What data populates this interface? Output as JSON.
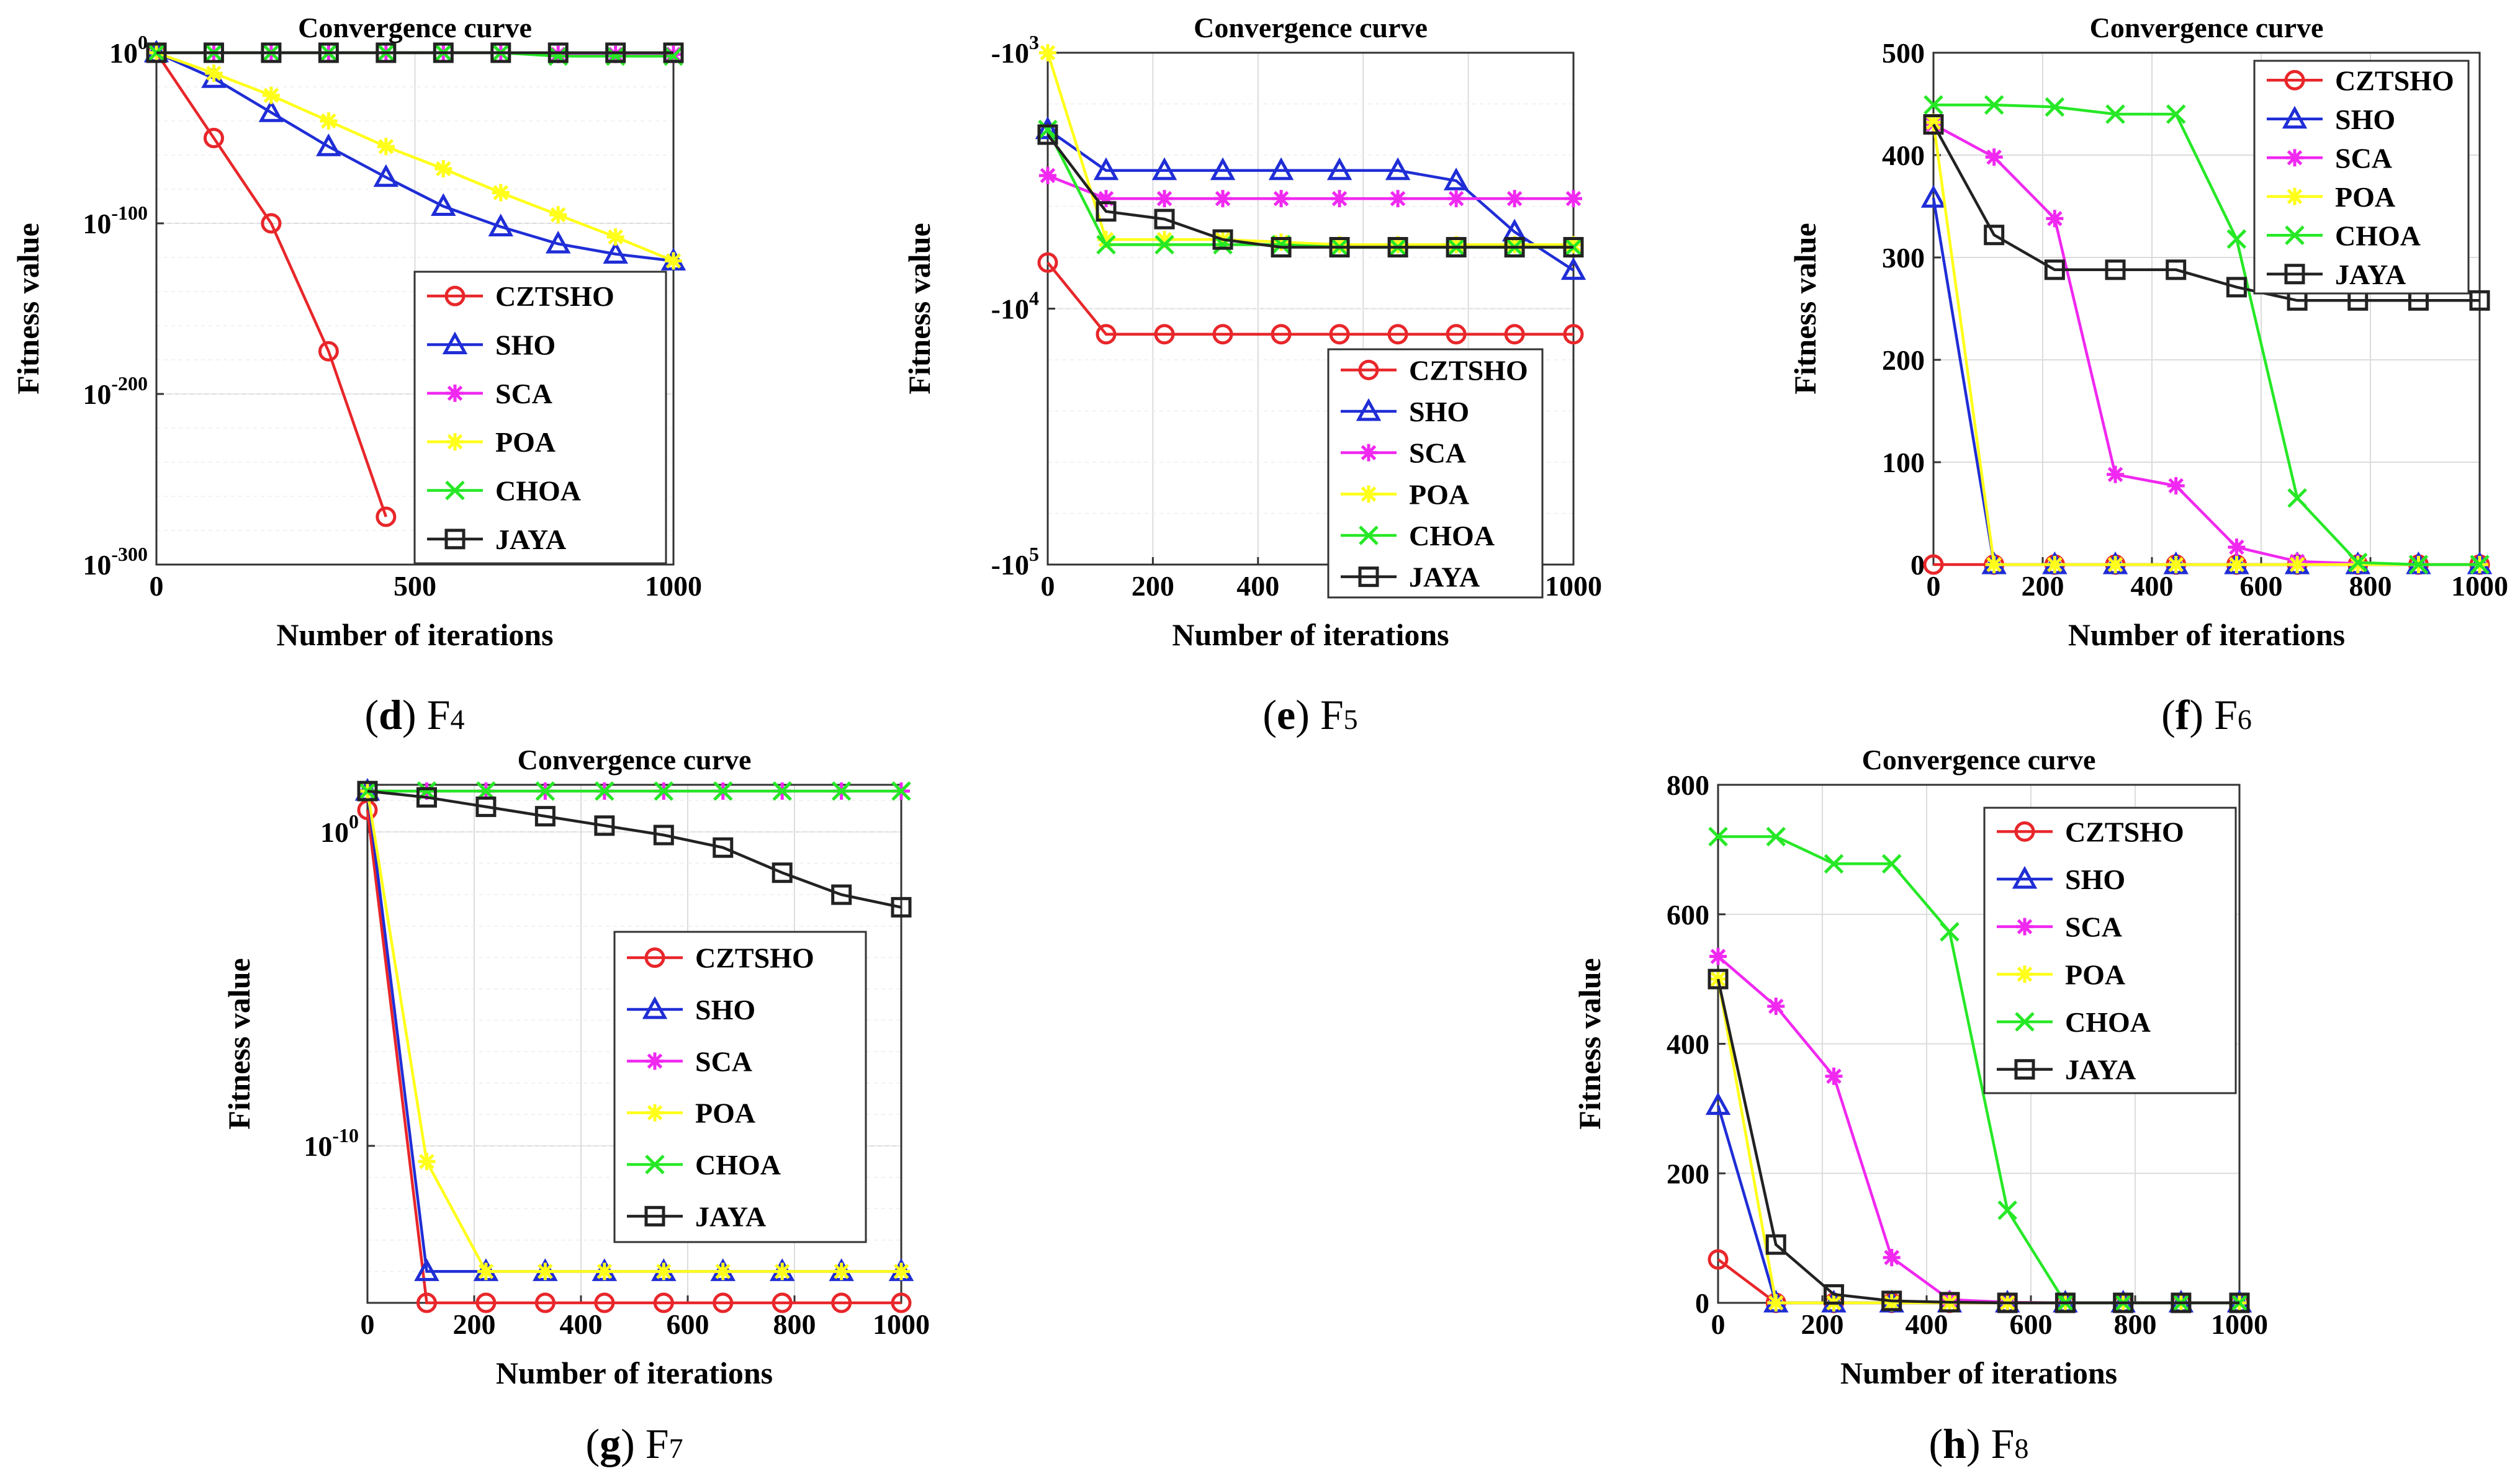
{
  "colors": {
    "CZTSHO": "#e8262a",
    "SHO": "#1f2dd6",
    "SCA": "#f028f0",
    "POA": "#ffff1a",
    "CHOA": "#26e826",
    "JAYA": "#222222"
  },
  "chart_data": [
    {
      "type": "line",
      "title": "Convergence curve",
      "xlabel": "Number of iterations",
      "ylabel": "Fitness value",
      "caption_letter": "(d)",
      "caption_func": "F",
      "caption_sub": "4",
      "yscale": "log",
      "xlim": [
        0,
        1000
      ],
      "ylim": [
        -300,
        0
      ],
      "xticks": [
        0,
        500,
        1000
      ],
      "yticks": [
        {
          "base": "10",
          "exp": "0",
          "v": 0
        },
        {
          "base": "10",
          "exp": "-100",
          "v": -100
        },
        {
          "base": "10",
          "exp": "-200",
          "v": -200
        },
        {
          "base": "10",
          "exp": "-300",
          "v": -300
        }
      ],
      "x": [
        0,
        111,
        222,
        333,
        444,
        555,
        666,
        777,
        888,
        1000
      ],
      "series": [
        {
          "name": "CZTSHO",
          "marker": "circle",
          "values": [
            0,
            -50,
            -100,
            -175,
            -272,
            null,
            null,
            null,
            null,
            null
          ]
        },
        {
          "name": "SHO",
          "marker": "triangle",
          "values": [
            0,
            -15,
            -35,
            -55,
            -73,
            -90,
            -102,
            -112,
            -118,
            -122
          ]
        },
        {
          "name": "SCA",
          "marker": "star",
          "values": [
            0,
            0,
            0,
            0,
            0,
            0,
            0,
            -1,
            -1,
            -1
          ]
        },
        {
          "name": "POA",
          "marker": "star",
          "values": [
            0,
            -12,
            -25,
            -40,
            -55,
            -68,
            -82,
            -95,
            -108,
            -122
          ]
        },
        {
          "name": "CHOA",
          "marker": "x",
          "values": [
            0,
            0,
            0,
            0,
            0,
            0,
            0,
            -2,
            -2,
            -2
          ]
        },
        {
          "name": "JAYA",
          "marker": "square",
          "values": [
            0,
            0,
            0,
            0,
            0,
            0,
            0,
            0,
            0,
            0
          ]
        }
      ],
      "legend": "bottom-right"
    },
    {
      "type": "line",
      "title": "Convergence curve",
      "xlabel": "Number of iterations",
      "ylabel": "Fitness value",
      "caption_letter": "(e)",
      "caption_func": "F",
      "caption_sub": "5",
      "yscale": "negative-log",
      "xlim": [
        0,
        1000
      ],
      "ylim": [
        3,
        5
      ],
      "xticks": [
        0,
        200,
        400,
        600,
        800,
        1000
      ],
      "yticks": [
        {
          "base": "-10",
          "exp": "3",
          "v": 3
        },
        {
          "base": "-10",
          "exp": "4",
          "v": 4
        },
        {
          "base": "-10",
          "exp": "5",
          "v": 5
        }
      ],
      "x": [
        0,
        111,
        222,
        333,
        444,
        555,
        666,
        777,
        888,
        1000
      ],
      "series": [
        {
          "name": "CZTSHO",
          "marker": "circle",
          "values": [
            3.82,
            4.1,
            4.1,
            4.1,
            4.1,
            4.1,
            4.1,
            4.1,
            4.1,
            4.1
          ]
        },
        {
          "name": "SHO",
          "marker": "triangle",
          "values": [
            3.3,
            3.46,
            3.46,
            3.46,
            3.46,
            3.46,
            3.46,
            3.5,
            3.7,
            3.85
          ]
        },
        {
          "name": "SCA",
          "marker": "star",
          "values": [
            3.48,
            3.57,
            3.57,
            3.57,
            3.57,
            3.57,
            3.57,
            3.57,
            3.57,
            3.57
          ]
        },
        {
          "name": "POA",
          "marker": "star",
          "values": [
            3.0,
            3.73,
            3.73,
            3.73,
            3.74,
            3.75,
            3.75,
            3.75,
            3.75,
            3.75
          ]
        },
        {
          "name": "CHOA",
          "marker": "x",
          "values": [
            3.3,
            3.75,
            3.75,
            3.75,
            3.75,
            3.76,
            3.76,
            3.76,
            3.76,
            3.76
          ]
        },
        {
          "name": "JAYA",
          "marker": "square",
          "values": [
            3.32,
            3.62,
            3.65,
            3.73,
            3.76,
            3.76,
            3.76,
            3.76,
            3.76,
            3.76
          ]
        }
      ],
      "legend": "bottom-right"
    },
    {
      "type": "line",
      "title": "Convergence curve",
      "xlabel": "Number of iterations",
      "ylabel": "Fitness value",
      "caption_letter": "(f)",
      "caption_func": "F",
      "caption_sub": "6",
      "yscale": "linear",
      "xlim": [
        0,
        1000
      ],
      "ylim": [
        0,
        500
      ],
      "xticks": [
        0,
        200,
        400,
        600,
        800,
        1000
      ],
      "yticks": [
        {
          "base": "0",
          "v": 0
        },
        {
          "base": "100",
          "v": 100
        },
        {
          "base": "200",
          "v": 200
        },
        {
          "base": "300",
          "v": 300
        },
        {
          "base": "400",
          "v": 400
        },
        {
          "base": "500",
          "v": 500
        }
      ],
      "x": [
        0,
        111,
        222,
        333,
        444,
        555,
        666,
        777,
        888,
        1000
      ],
      "series": [
        {
          "name": "CZTSHO",
          "marker": "circle",
          "values": [
            0,
            0,
            0,
            0,
            0,
            0,
            0,
            0,
            0,
            0
          ]
        },
        {
          "name": "SHO",
          "marker": "triangle",
          "values": [
            358,
            0,
            0,
            0,
            0,
            0,
            0,
            0,
            0,
            0
          ]
        },
        {
          "name": "SCA",
          "marker": "star",
          "values": [
            430,
            398,
            338,
            88,
            77,
            17,
            3,
            1,
            0,
            0
          ]
        },
        {
          "name": "POA",
          "marker": "star",
          "values": [
            432,
            0,
            0,
            0,
            0,
            0,
            0,
            0,
            0,
            0
          ]
        },
        {
          "name": "CHOA",
          "marker": "x",
          "values": [
            449,
            449,
            447,
            440,
            440,
            318,
            65,
            2,
            0,
            0
          ]
        },
        {
          "name": "JAYA",
          "marker": "square",
          "values": [
            430,
            322,
            288,
            288,
            288,
            271,
            258,
            258,
            258,
            258
          ]
        }
      ],
      "legend": "top-right"
    },
    {
      "type": "line",
      "title": "Convergence curve",
      "xlabel": "Number of iterations",
      "ylabel": "Fitness value",
      "caption_letter": "(g)",
      "caption_func": "F",
      "caption_sub": "7",
      "yscale": "log",
      "xlim": [
        0,
        1000
      ],
      "ylim": [
        -15,
        1.5
      ],
      "xticks": [
        0,
        200,
        400,
        600,
        800,
        1000
      ],
      "yticks": [
        {
          "base": "10",
          "exp": "0",
          "v": 0
        },
        {
          "base": "10",
          "exp": "-10",
          "v": -10
        }
      ],
      "x": [
        0,
        111,
        222,
        333,
        444,
        555,
        666,
        777,
        888,
        1000
      ],
      "series": [
        {
          "name": "CZTSHO",
          "marker": "circle",
          "values": [
            0.7,
            -15,
            -15,
            -15,
            -15,
            -15,
            -15,
            -15,
            -15,
            -15
          ]
        },
        {
          "name": "SHO",
          "marker": "triangle",
          "values": [
            1.3,
            -14,
            -14,
            -14,
            -14,
            -14,
            -14,
            -14,
            -14,
            -14
          ]
        },
        {
          "name": "SCA",
          "marker": "star",
          "values": [
            1.3,
            1.3,
            1.3,
            1.3,
            1.3,
            1.3,
            1.3,
            1.3,
            1.3,
            1.3
          ]
        },
        {
          "name": "POA",
          "marker": "star",
          "values": [
            1.3,
            -10.5,
            -14,
            -14,
            -14,
            -14,
            -14,
            -14,
            -14,
            -14
          ]
        },
        {
          "name": "CHOA",
          "marker": "x",
          "values": [
            1.3,
            1.3,
            1.3,
            1.3,
            1.3,
            1.3,
            1.3,
            1.3,
            1.3,
            1.3
          ]
        },
        {
          "name": "JAYA",
          "marker": "square",
          "values": [
            1.3,
            1.1,
            0.8,
            0.5,
            0.2,
            -0.1,
            -0.5,
            -1.3,
            -2.0,
            -2.4
          ]
        }
      ],
      "legend": "bottom-right"
    },
    {
      "type": "line",
      "title": "Convergence curve",
      "xlabel": "Number of iterations",
      "ylabel": "Fitness value",
      "caption_letter": "(h)",
      "caption_func": "F",
      "caption_sub": "8",
      "yscale": "linear",
      "xlim": [
        0,
        1000
      ],
      "ylim": [
        0,
        800
      ],
      "xticks": [
        0,
        200,
        400,
        600,
        800,
        1000
      ],
      "yticks": [
        {
          "base": "0",
          "v": 0
        },
        {
          "base": "200",
          "v": 200
        },
        {
          "base": "400",
          "v": 400
        },
        {
          "base": "600",
          "v": 600
        },
        {
          "base": "800",
          "v": 800
        }
      ],
      "x": [
        0,
        111,
        222,
        333,
        444,
        555,
        666,
        777,
        888,
        1000
      ],
      "series": [
        {
          "name": "CZTSHO",
          "marker": "circle",
          "values": [
            67,
            0,
            0,
            0,
            0,
            0,
            0,
            0,
            0,
            0
          ]
        },
        {
          "name": "SHO",
          "marker": "triangle",
          "values": [
            305,
            0,
            0,
            0,
            0,
            0,
            0,
            0,
            0,
            0
          ]
        },
        {
          "name": "SCA",
          "marker": "star",
          "values": [
            535,
            458,
            350,
            70,
            5,
            1,
            0,
            0,
            0,
            0
          ]
        },
        {
          "name": "POA",
          "marker": "star",
          "values": [
            500,
            0,
            0,
            0,
            0,
            0,
            0,
            0,
            0,
            0
          ]
        },
        {
          "name": "CHOA",
          "marker": "x",
          "values": [
            720,
            720,
            678,
            678,
            573,
            143,
            0,
            0,
            0,
            0
          ]
        },
        {
          "name": "JAYA",
          "marker": "square",
          "values": [
            500,
            90,
            13,
            3,
            1,
            0,
            0,
            0,
            0,
            0
          ]
        }
      ],
      "legend": "top-right"
    }
  ]
}
